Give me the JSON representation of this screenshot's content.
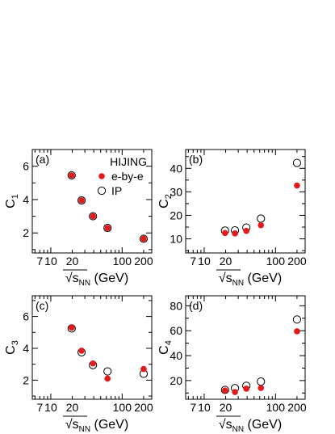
{
  "figure": {
    "model_label": "HIJING",
    "colors": {
      "ebye": "#e31a1c",
      "ip_fill": "#ffffff",
      "stroke": "#000000"
    }
  },
  "chart_data": [
    {
      "type": "scatter",
      "panel_label": "(a)",
      "ylabel": "C1",
      "xlabel": "√sNN (GeV)",
      "xscale": "log",
      "xlim": [
        5.5,
        260
      ],
      "ylim": [
        0.8,
        7.0
      ],
      "xticks": [
        7,
        10,
        20,
        100,
        200
      ],
      "xtick_labels": [
        "7",
        "10",
        "20",
        "100",
        "200"
      ],
      "yticks": [
        2,
        4,
        6
      ],
      "legend": true,
      "series": [
        {
          "name": "e-by-e",
          "style": "filled",
          "x": [
            19.6,
            27,
            39,
            62.4,
            200
          ],
          "y": [
            5.45,
            3.95,
            3.0,
            2.3,
            1.65
          ]
        },
        {
          "name": "IP",
          "style": "open",
          "x": [
            19.6,
            27,
            39,
            62.4,
            200
          ],
          "y": [
            5.45,
            3.95,
            3.0,
            2.3,
            1.65
          ]
        }
      ]
    },
    {
      "type": "scatter",
      "panel_label": "(b)",
      "ylabel": "C2",
      "xlabel": "√sNN (GeV)",
      "xscale": "log",
      "xlim": [
        5.5,
        260
      ],
      "ylim": [
        4,
        48
      ],
      "xticks": [
        7,
        10,
        20,
        100,
        200
      ],
      "xtick_labels": [
        "7",
        "10",
        "20",
        "100",
        "200"
      ],
      "yticks": [
        10,
        20,
        30,
        40
      ],
      "legend": false,
      "series": [
        {
          "name": "e-by-e",
          "style": "filled",
          "x": [
            19.6,
            27,
            39,
            62.4,
            200
          ],
          "y": [
            12.5,
            12.3,
            13.4,
            15.8,
            32.7
          ]
        },
        {
          "name": "IP",
          "style": "open",
          "x": [
            19.6,
            27,
            39,
            62.4,
            200
          ],
          "y": [
            13.5,
            13.6,
            14.8,
            18.6,
            42.3
          ]
        }
      ]
    },
    {
      "type": "scatter",
      "panel_label": "(c)",
      "ylabel": "C3",
      "xlabel": "√sNN (GeV)",
      "xscale": "log",
      "xlim": [
        5.5,
        260
      ],
      "ylim": [
        0.8,
        7.3
      ],
      "xticks": [
        7,
        10,
        20,
        100,
        200
      ],
      "xtick_labels": [
        "7",
        "10",
        "20",
        "100",
        "200"
      ],
      "yticks": [
        2,
        4,
        6
      ],
      "legend": false,
      "series": [
        {
          "name": "e-by-e",
          "style": "filled",
          "x": [
            19.6,
            27,
            39,
            62.4,
            200
          ],
          "y": [
            5.3,
            3.85,
            3.05,
            2.1,
            2.7
          ]
        },
        {
          "name": "IP",
          "style": "open",
          "x": [
            19.6,
            27,
            39,
            62.4,
            200
          ],
          "y": [
            5.25,
            3.75,
            2.95,
            2.55,
            2.4
          ]
        }
      ]
    },
    {
      "type": "scatter",
      "panel_label": "(d)",
      "ylabel": "C4",
      "xlabel": "√sNN (GeV)",
      "xscale": "log",
      "xlim": [
        5.5,
        260
      ],
      "ylim": [
        5,
        88
      ],
      "xticks": [
        7,
        10,
        20,
        100,
        200
      ],
      "xtick_labels": [
        "7",
        "10",
        "20",
        "100",
        "200"
      ],
      "yticks": [
        20,
        40,
        60,
        80
      ],
      "legend": false,
      "series": [
        {
          "name": "e-by-e",
          "style": "filled",
          "x": [
            19.6,
            27,
            39,
            62.4,
            200
          ],
          "y": [
            12.0,
            10.8,
            13.5,
            14.0,
            59.5
          ]
        },
        {
          "name": "IP",
          "style": "open",
          "x": [
            19.6,
            27,
            39,
            62.4,
            200
          ],
          "y": [
            12.5,
            13.9,
            15.8,
            19.2,
            69.0
          ]
        }
      ]
    }
  ]
}
